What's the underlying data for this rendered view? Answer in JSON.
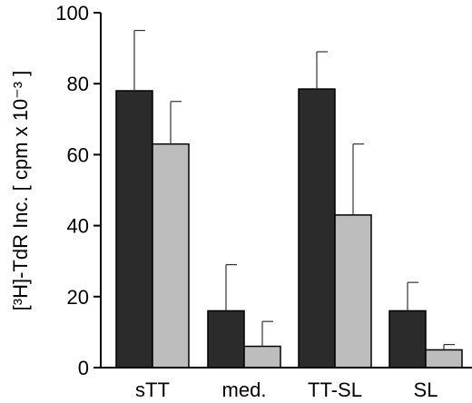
{
  "chart_data": {
    "type": "bar",
    "title": "",
    "xlabel": "",
    "ylabel": "[³H]-TdR Inc. [ cpm x 10⁻³ ]",
    "categories": [
      "sTT",
      "med.",
      "TT-SL",
      "SL"
    ],
    "ylim": [
      0,
      100
    ],
    "yticks": [
      "0",
      "20",
      "40",
      "60",
      "80",
      "100"
    ],
    "grid": false,
    "legend": "none",
    "series": [
      {
        "values": [
          78,
          16,
          78.5,
          16
        ],
        "errors": [
          17,
          13,
          10.5,
          8
        ],
        "color": "#2b2b2b"
      },
      {
        "values": [
          63,
          6,
          43,
          5
        ],
        "errors": [
          12,
          7,
          20,
          1.5
        ],
        "color": "#bdbdbd"
      }
    ]
  }
}
